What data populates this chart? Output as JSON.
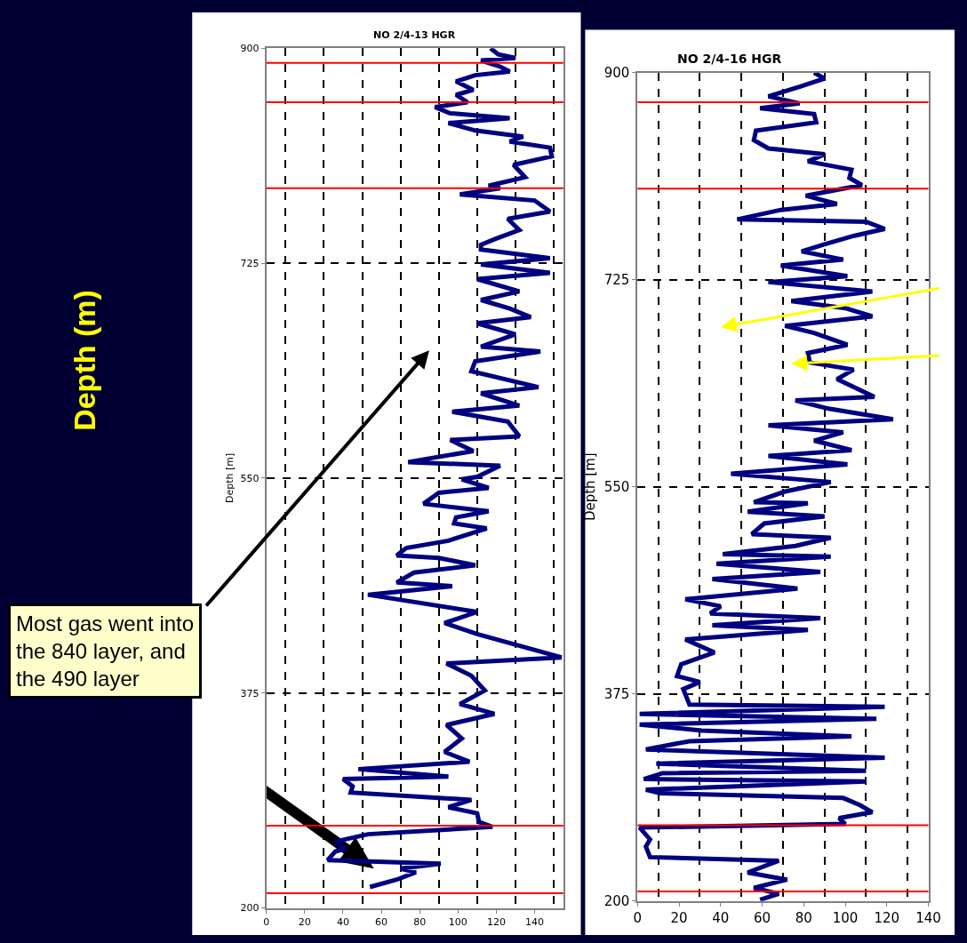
{
  "chart_data": [
    {
      "type": "line",
      "title": "NO 2/4-13 HGR",
      "ylabel": "Depth [m]",
      "xlim": [
        0,
        155
      ],
      "xticks": [
        0,
        20,
        40,
        60,
        80,
        100,
        120,
        140,
        {
          "value": 10,
          "label": null
        },
        {
          "value": 30,
          "label": null
        },
        {
          "value": 50,
          "label": null
        },
        {
          "value": 70,
          "label": null
        },
        {
          "value": 90,
          "label": null
        },
        {
          "value": 110,
          "label": null
        },
        {
          "value": 130,
          "label": null
        },
        {
          "value": 150,
          "label": null
        }
      ],
      "ylim": [
        200,
        900
      ],
      "yticks": [
        200,
        375,
        550,
        725,
        900
      ],
      "grid": true,
      "series": [
        {
          "color": "#000080",
          "x": [
            117,
            121,
            130,
            112,
            122,
            127,
            109,
            99,
            108,
            99,
            105,
            88,
            96,
            127,
            95,
            109,
            134,
            127,
            148,
            149,
            129,
            135,
            116,
            122,
            101,
            140,
            148,
            126,
            132,
            120,
            112,
            112,
            148,
            112,
            148,
            110,
            132,
            112,
            127,
            138,
            110,
            130,
            112,
            143,
            109,
            107,
            142,
            112,
            132,
            97,
            126,
            132,
            96,
            108,
            74,
            122,
            110,
            102,
            116,
            90,
            82,
            116,
            99,
            98,
            115,
            95,
            73,
            68,
            90,
            109,
            77,
            68,
            97,
            53,
            110,
            93,
            110,
            154,
            94,
            107,
            114,
            101,
            119,
            94,
            102,
            93,
            106,
            48,
            95,
            40,
            45,
            44,
            107,
            95,
            110,
            111,
            118,
            53,
            36,
            41,
            36,
            32,
            91,
            70,
            78,
            68,
            54
          ],
          "values": [
            900,
            895,
            892,
            890,
            885,
            881,
            878,
            873,
            866,
            862,
            856,
            852,
            847,
            843,
            839,
            833,
            828,
            824,
            819,
            812,
            805,
            795,
            788,
            786,
            781,
            776,
            767,
            761,
            752,
            745,
            740,
            736,
            729,
            724,
            717,
            712,
            702,
            695,
            688,
            681,
            676,
            667,
            657,
            653,
            645,
            637,
            624,
            619,
            609,
            604,
            596,
            584,
            581,
            572,
            563,
            560,
            551,
            549,
            542,
            538,
            529,
            523,
            518,
            513,
            509,
            499,
            493,
            487,
            485,
            479,
            473,
            465,
            462,
            455,
            441,
            432,
            423,
            404,
            399,
            389,
            377,
            366,
            358,
            349,
            338,
            327,
            319,
            313,
            307,
            305,
            299,
            294,
            288,
            282,
            277,
            270,
            266,
            260,
            254,
            248,
            246,
            239,
            236,
            232,
            229,
            223,
            217
          ]
        }
      ],
      "ref_lines": [
        {
          "axis": "y",
          "value": 888,
          "color": "#ff0000"
        },
        {
          "axis": "y",
          "value": 856,
          "color": "#ff0000"
        },
        {
          "axis": "y",
          "value": 786,
          "color": "#ff0000"
        },
        {
          "axis": "y",
          "value": 267,
          "color": "#ff0000"
        },
        {
          "axis": "y",
          "value": 212,
          "color": "#ff0000"
        }
      ],
      "annotations": [
        "Depth (m)",
        "Most gas went into\nthe 840 layer, and\nthe 490 layer"
      ]
    },
    {
      "type": "line",
      "title": "NO 2/4-16 HGR",
      "ylabel": "Depth [m]",
      "xlim": [
        0,
        140
      ],
      "xticks": [
        0,
        20,
        40,
        60,
        80,
        100,
        120,
        140,
        {
          "value": 10,
          "label": null
        },
        {
          "value": 30,
          "label": null
        },
        {
          "value": 50,
          "label": null
        },
        {
          "value": 70,
          "label": null
        },
        {
          "value": 90,
          "label": null
        },
        {
          "value": 110,
          "label": null
        },
        {
          "value": 130,
          "label": null
        }
      ],
      "ylim": [
        200,
        900
      ],
      "yticks": [
        200,
        375,
        550,
        725,
        900
      ],
      "grid": true,
      "series": [
        {
          "color": "#000080",
          "x": [
            85,
            90,
            78,
            63,
            78,
            59,
            85,
            86,
            57,
            56,
            63,
            90,
            82,
            103,
            102,
            108,
            81,
            96,
            69,
            48,
            110,
            119,
            104,
            90,
            79,
            99,
            69,
            101,
            63,
            113,
            74,
            100,
            113,
            71,
            85,
            101,
            82,
            83,
            104,
            96,
            114,
            76,
            92,
            123,
            63,
            99,
            85,
            103,
            63,
            101,
            45,
            93,
            71,
            56,
            82,
            53,
            90,
            61,
            55,
            93,
            76,
            41,
            93,
            38,
            88,
            36,
            77,
            41,
            23,
            40,
            35,
            88,
            36,
            82,
            23,
            37,
            21,
            19,
            30,
            22,
            25,
            119,
            1,
            115,
            1,
            31,
            103,
            25,
            4,
            119,
            9,
            110,
            12,
            3,
            110,
            4,
            11,
            99,
            107,
            113,
            97,
            100,
            1,
            6,
            4,
            6,
            68,
            53,
            72,
            56,
            68,
            59
          ],
          "values": [
            900,
            895,
            888,
            880,
            874,
            870,
            865,
            858,
            851,
            843,
            836,
            831,
            825,
            818,
            811,
            805,
            796,
            789,
            784,
            776,
            774,
            768,
            762,
            755,
            749,
            742,
            737,
            728,
            723,
            715,
            707,
            701,
            694,
            686,
            680,
            670,
            663,
            655,
            649,
            641,
            626,
            623,
            616,
            607,
            602,
            596,
            589,
            581,
            576,
            569,
            561,
            554,
            546,
            537,
            536,
            529,
            525,
            519,
            510,
            507,
            500,
            493,
            491,
            485,
            478,
            472,
            464,
            458,
            455,
            449,
            443,
            439,
            433,
            429,
            421,
            410,
            400,
            390,
            385,
            379,
            366,
            364,
            358,
            354,
            349,
            344,
            339,
            335,
            328,
            321,
            316,
            310,
            308,
            303,
            301,
            294,
            291,
            287,
            281,
            275,
            270,
            265,
            262,
            252,
            246,
            237,
            234,
            224,
            218,
            211,
            206,
            201
          ]
        }
      ],
      "ref_lines": [
        {
          "axis": "y",
          "value": 875,
          "color": "#ff0000"
        },
        {
          "axis": "y",
          "value": 802,
          "color": "#ff0000"
        },
        {
          "axis": "y",
          "value": 264,
          "color": "#ff0000"
        },
        {
          "axis": "y",
          "value": 208,
          "color": "#ff0000"
        }
      ]
    }
  ]
}
